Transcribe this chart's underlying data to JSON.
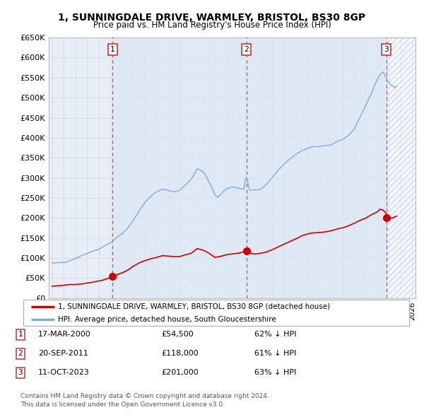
{
  "title": "1, SUNNINGDALE DRIVE, WARMLEY, BRISTOL, BS30 8GP",
  "subtitle": "Price paid vs. HM Land Registry's House Price Index (HPI)",
  "background_color": "white",
  "plot_bg_color": "#e8eef8",
  "hpi_line_color": "#7ab0d4",
  "price_line_color": "#cc0000",
  "shaded_bg_color": "#dce8f5",
  "ylim": [
    0,
    650000
  ],
  "yticks": [
    0,
    50000,
    100000,
    150000,
    200000,
    250000,
    300000,
    350000,
    400000,
    450000,
    500000,
    550000,
    600000,
    650000
  ],
  "ytick_labels": [
    "£0",
    "£50K",
    "£100K",
    "£150K",
    "£200K",
    "£250K",
    "£300K",
    "£350K",
    "£400K",
    "£450K",
    "£500K",
    "£550K",
    "£600K",
    "£650K"
  ],
  "sales": [
    {
      "date": 2000.21,
      "price": 54500,
      "label": "1"
    },
    {
      "date": 2011.72,
      "price": 118000,
      "label": "2"
    },
    {
      "date": 2023.78,
      "price": 201000,
      "label": "3"
    }
  ],
  "legend_price_label": "1, SUNNINGDALE DRIVE, WARMLEY, BRISTOL, BS30 8GP (detached house)",
  "legend_hpi_label": "HPI: Average price, detached house, South Gloucestershire",
  "table_rows": [
    {
      "num": "1",
      "date": "17-MAR-2000",
      "price": "£54,500",
      "pct": "62% ↓ HPI"
    },
    {
      "num": "2",
      "date": "20-SEP-2011",
      "price": "£118,000",
      "pct": "61% ↓ HPI"
    },
    {
      "num": "3",
      "date": "11-OCT-2023",
      "price": "£201,000",
      "pct": "63% ↓ HPI"
    }
  ],
  "footnote": "Contains HM Land Registry data © Crown copyright and database right 2024.\nThis data is licensed under the Open Government Licence v3.0."
}
